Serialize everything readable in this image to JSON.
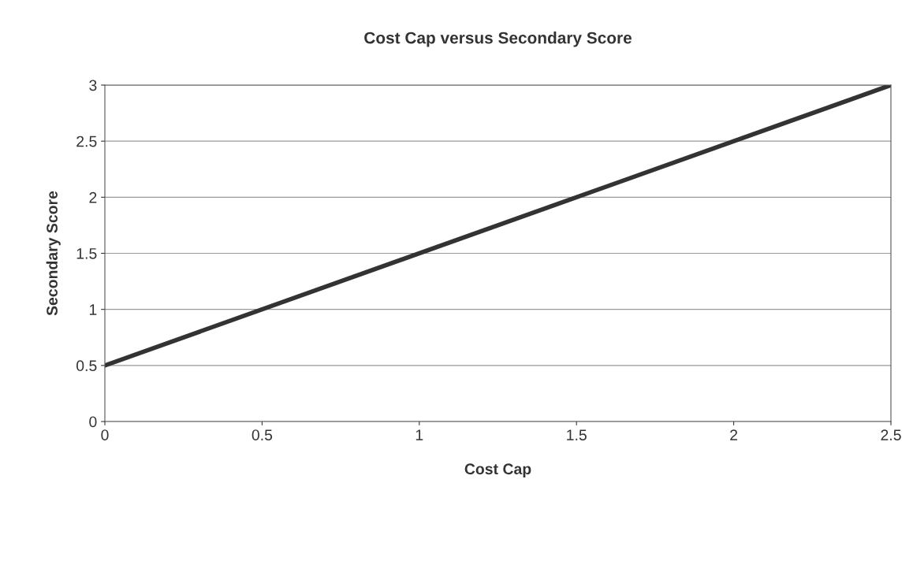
{
  "chart_data": {
    "type": "line",
    "title": "Cost Cap versus Secondary Score",
    "xlabel": "Cost Cap",
    "ylabel": "Secondary Score",
    "x": [
      0,
      2.5
    ],
    "series": [
      {
        "color": "#333333",
        "values": [
          0.5,
          3
        ]
      }
    ],
    "xlim": [
      0,
      2.5
    ],
    "xticks": [
      0,
      0.5,
      1,
      1.5,
      2,
      2.5
    ],
    "ylim": [
      0,
      3
    ],
    "yticks": [
      0,
      0.5,
      1,
      1.5,
      2,
      2.5,
      3
    ],
    "grid": "y",
    "marker": "none",
    "line_style": "solid"
  }
}
